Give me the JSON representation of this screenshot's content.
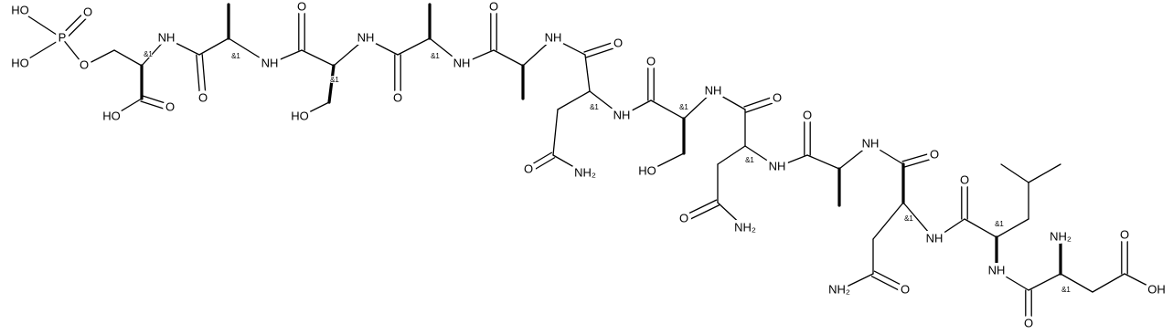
{
  "atom_labels": [
    "HO",
    "P",
    "O",
    "HO",
    "O",
    "&1",
    "HO",
    "O",
    "NH",
    "O",
    "&1",
    "NH",
    "O",
    "&1",
    "HO",
    "NH",
    "O",
    "&1",
    "NH",
    "O",
    "NH",
    "O",
    "&1",
    "O",
    "NH₂",
    "NH",
    "O",
    "&1",
    "HO",
    "NH",
    "O",
    "&1",
    "O",
    "NH₂",
    "NH",
    "O",
    "NH",
    "O",
    "&1",
    "O",
    "NH₂",
    "NH",
    "O",
    "&1",
    "NH",
    "O",
    "&1",
    "NH₂",
    "O",
    "OH"
  ]
}
